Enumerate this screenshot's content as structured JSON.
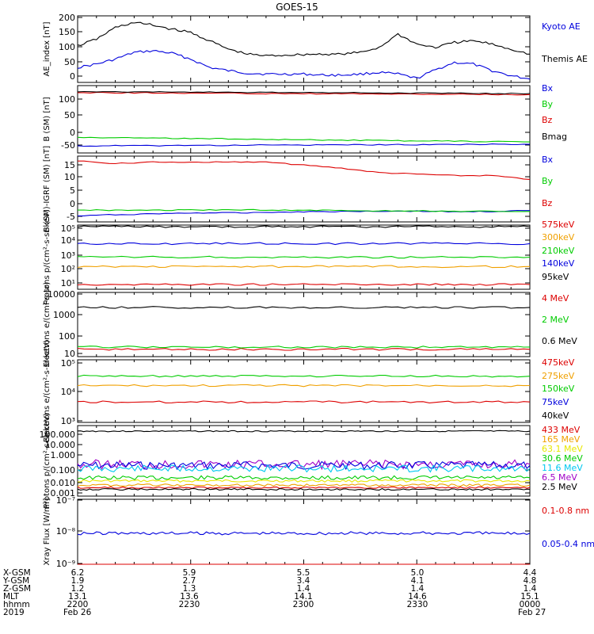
{
  "title": "GOES-15",
  "colors": {
    "black": "#000000",
    "blue": "#0000dd",
    "green": "#00cc00",
    "red": "#dd0000",
    "orange": "#f0a000",
    "cyan": "#00c8f0",
    "yellow": "#e8e800",
    "purple": "#a000c8"
  },
  "chart_data": [
    {
      "type": "line",
      "ylabel": "AE_index [nT]",
      "ylim": [
        0,
        200
      ],
      "yticks": [
        "0",
        "50",
        "100",
        "150",
        "200"
      ],
      "xticks": [
        "2200",
        "2230",
        "2300",
        "2330",
        "0000"
      ],
      "x": [
        "2200",
        "2205",
        "2210",
        "2215",
        "2220",
        "2225",
        "2230",
        "2235",
        "2240",
        "2245",
        "2250",
        "2255",
        "2300",
        "2305",
        "2310",
        "2315",
        "2320",
        "2325",
        "2330",
        "2335",
        "2340",
        "2345",
        "2350",
        "2355",
        "0000"
      ],
      "series": [
        {
          "name": "Kyoto AE",
          "color": "blue",
          "values": [
            45,
            55,
            70,
            90,
            95,
            88,
            70,
            45,
            35,
            28,
            25,
            25,
            25,
            22,
            22,
            25,
            30,
            25,
            12,
            38,
            60,
            55,
            35,
            20,
            10
          ]
        },
        {
          "name": "Themis AE",
          "color": "black",
          "values": [
            110,
            130,
            165,
            180,
            172,
            160,
            150,
            125,
            100,
            85,
            80,
            82,
            84,
            85,
            85,
            90,
            105,
            145,
            115,
            105,
            120,
            125,
            115,
            100,
            85
          ]
        }
      ]
    },
    {
      "type": "line",
      "ylabel": "B (SM) [nT]",
      "ylim": [
        -55,
        140
      ],
      "yticks": [
        "-50",
        "0",
        "50",
        "100"
      ],
      "series": [
        {
          "name": "Bx",
          "color": "blue",
          "values": [
            -35,
            -34,
            -34,
            -33,
            -33,
            -32,
            -32,
            -32,
            -31,
            -31,
            -30,
            -30,
            -30
          ]
        },
        {
          "name": "By",
          "color": "green",
          "values": [
            -10,
            -11,
            -12,
            -13,
            -14,
            -16,
            -17,
            -18,
            -19,
            -20,
            -21,
            -22,
            -23
          ]
        },
        {
          "name": "Bz",
          "color": "red",
          "values": [
            120,
            119,
            119,
            118,
            118,
            117,
            117,
            116,
            116,
            115,
            115,
            114,
            114
          ]
        },
        {
          "name": "Bmag",
          "color": "black",
          "values": [
            123,
            122,
            122,
            121,
            121,
            120,
            120,
            119,
            119,
            118,
            118,
            117,
            117
          ]
        }
      ]
    },
    {
      "type": "line",
      "ylabel": "B (SM)-IGRF (SM) [nT]",
      "ylim": [
        -5,
        17
      ],
      "yticks": [
        "-5",
        "0",
        "5",
        "10",
        "15"
      ],
      "series": [
        {
          "name": "Bx",
          "color": "blue",
          "values": [
            -3,
            -2.6,
            -2.3,
            -2,
            -2,
            -1.8,
            -1.6,
            -1.5,
            -1.4,
            -1.4,
            -1.6,
            -1.5,
            -1.2
          ]
        },
        {
          "name": "By",
          "color": "green",
          "values": [
            -1,
            -1.1,
            -1.1,
            -1,
            -1,
            -1,
            -1.1,
            -1.2,
            -1.3,
            -1.3,
            -1.5,
            -1.5,
            -1.5
          ]
        },
        {
          "name": "Bz",
          "color": "red",
          "values": [
            15.5,
            14.5,
            15,
            15,
            15,
            15,
            14,
            13,
            11.5,
            11,
            10.5,
            10.5,
            9.2
          ]
        }
      ]
    },
    {
      "type": "line",
      "yscale": "log",
      "ylabel": "Protons p/(cm²-s-sr-keV)",
      "ylim": [
        10,
        100000
      ],
      "yticks": [
        "10¹",
        "10²",
        "10³",
        "10⁴",
        "10⁵"
      ],
      "series": [
        {
          "name": "575keV",
          "color": "red",
          "values": [
            20,
            20,
            20,
            20,
            20,
            20,
            20,
            20,
            20,
            20,
            20,
            20,
            20
          ]
        },
        {
          "name": "300keV",
          "color": "orange",
          "values": [
            260,
            260,
            260,
            260,
            260,
            260,
            260,
            260,
            260,
            260,
            260,
            260,
            260
          ]
        },
        {
          "name": "210keV",
          "color": "green",
          "values": [
            1000,
            1000,
            1000,
            1000,
            1000,
            1000,
            1000,
            1000,
            1000,
            1000,
            1000,
            1000,
            1000
          ]
        },
        {
          "name": "140keV",
          "color": "blue",
          "values": [
            7000,
            7000,
            7000,
            7000,
            7000,
            7000,
            7000,
            7000,
            7000,
            7000,
            7000,
            7000,
            7000
          ]
        },
        {
          "name": "95keV",
          "color": "black",
          "values": [
            80000,
            80000,
            80000,
            80000,
            80000,
            80000,
            80000,
            80000,
            80000,
            80000,
            80000,
            80000,
            80000
          ]
        }
      ]
    },
    {
      "type": "line",
      "yscale": "log",
      "ylabel": "Electrons e/(cm²-s-sr)",
      "ylim": [
        10,
        10000
      ],
      "yticks": [
        "10",
        "100",
        "1000",
        "10000"
      ],
      "series": [
        {
          "name": "4 MeV",
          "color": "red",
          "values": [
            22,
            22,
            22,
            22,
            22,
            22,
            22,
            22,
            22,
            22,
            22,
            22,
            22
          ]
        },
        {
          "name": "2 MeV",
          "color": "green",
          "values": [
            28,
            28,
            28,
            28,
            28,
            28,
            28,
            28,
            28,
            28,
            28,
            28,
            28
          ]
        },
        {
          "name": "0.6 MeV",
          "color": "black",
          "values": [
            2000,
            2000,
            2000,
            2000,
            2000,
            2000,
            2000,
            2000,
            2000,
            2000,
            2000,
            2000,
            2000
          ]
        }
      ]
    },
    {
      "type": "line",
      "yscale": "log",
      "ylabel": "Electrons e/(cm²-s-sr-keV)",
      "ylim": [
        1000,
        100000
      ],
      "yticks": [
        "10³",
        "10⁴",
        "10⁵"
      ],
      "series": [
        {
          "name": "475keV",
          "color": "red",
          "values": [
            4500,
            4500,
            4500,
            4500,
            4500,
            4500,
            4500,
            4500,
            4500,
            4500,
            4500,
            4500,
            4500
          ]
        },
        {
          "name": "275keV",
          "color": "orange",
          "values": [
            15000,
            15000,
            15000,
            15000,
            15000,
            15000,
            15000,
            15000,
            15000,
            15000,
            15000,
            15000,
            15000
          ]
        },
        {
          "name": "150keV",
          "color": "green",
          "values": [
            30000,
            30000,
            30000,
            30000,
            30000,
            30000,
            30000,
            30000,
            30000,
            30000,
            30000,
            30000,
            30000
          ]
        },
        {
          "name": "75keV",
          "color": "blue",
          "values": []
        },
        {
          "name": "40keV",
          "color": "black",
          "values": []
        }
      ]
    },
    {
      "type": "line",
      "yscale": "log",
      "ylabel": "Protons p/(cm²-s-sr-keV)",
      "ylim": [
        0.001,
        100
      ],
      "yticks": [
        "0.001",
        "0.010",
        "0.100",
        "1.000",
        "10.000",
        "100.000"
      ],
      "series": [
        {
          "name": "433 MeV",
          "color": "red",
          "values": []
        },
        {
          "name": "165 MeV",
          "color": "orange",
          "values": []
        },
        {
          "name": "63.1 MeV",
          "color": "yellow",
          "values": []
        },
        {
          "name": "30.6 MeV",
          "color": "green",
          "values": []
        },
        {
          "name": "11.6 MeV",
          "color": "cyan",
          "values": []
        },
        {
          "name": "6.5 MeV",
          "color": "purple",
          "values": []
        },
        {
          "name": "2.5 MeV",
          "color": "black",
          "values": []
        }
      ]
    },
    {
      "type": "line",
      "yscale": "log",
      "ylabel": "Xray Flux [W/m²]",
      "ylim": [
        1e-09,
        1e-07
      ],
      "yticks": [
        "10⁻⁹",
        "10⁻⁸",
        "10⁻⁷"
      ],
      "series": [
        {
          "name": "0.1-0.8 nm",
          "color": "red",
          "values": []
        },
        {
          "name": "0.05-0.4 nm",
          "color": "blue",
          "values": []
        }
      ]
    }
  ],
  "orbit_table": {
    "row_labels": [
      "X-GSM",
      "Y-GSM",
      "Z-GSM",
      "MLT",
      "hhmm",
      "2019"
    ],
    "columns": [
      [
        "6.2",
        "1.9",
        "1.2",
        "13.1",
        "2200",
        "Feb 26"
      ],
      [
        "5.9",
        "2.7",
        "1.3",
        "13.6",
        "2230",
        ""
      ],
      [
        "5.5",
        "3.4",
        "1.4",
        "14.1",
        "2300",
        ""
      ],
      [
        "5.0",
        "4.1",
        "1.4",
        "14.6",
        "2330",
        ""
      ],
      [
        "4.4",
        "4.8",
        "1.4",
        "15.1",
        "0000",
        "Feb 27"
      ]
    ]
  }
}
